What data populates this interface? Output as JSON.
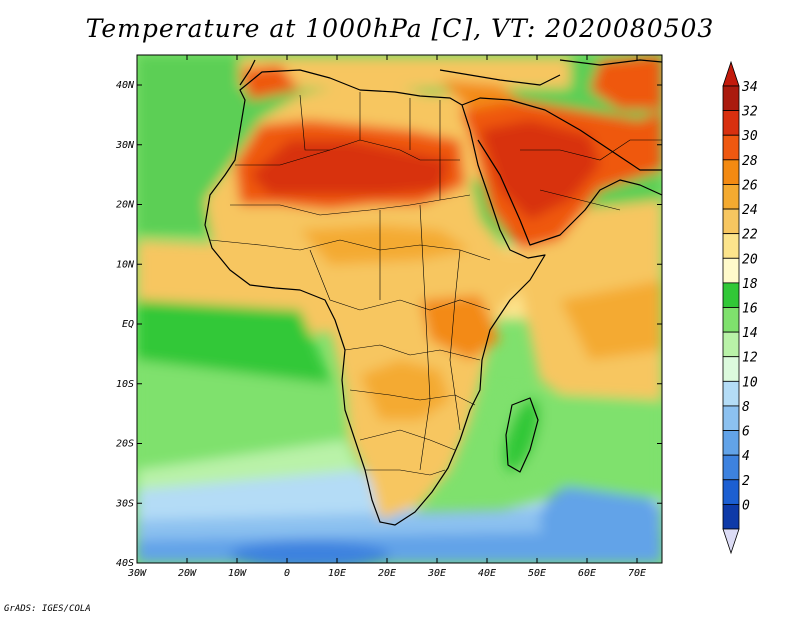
{
  "title": "Temperature at 1000hPa [C], VT: 2020080503",
  "credit": "GrADS: IGES/COLA",
  "map": {
    "lon_range": [
      -30,
      75
    ],
    "lat_range": [
      -40,
      45
    ],
    "lon_ticks": [
      "30W",
      "20W",
      "10W",
      "0",
      "10E",
      "20E",
      "30E",
      "40E",
      "50E",
      "60E",
      "70E"
    ],
    "lat_ticks": [
      "40N",
      "30N",
      "20N",
      "10N",
      "EQ",
      "10S",
      "20S",
      "30S",
      "40S"
    ]
  },
  "colorbar": {
    "levels": [
      "34",
      "32",
      "30",
      "28",
      "26",
      "24",
      "22",
      "20",
      "18",
      "16",
      "14",
      "12",
      "10",
      "8",
      "6",
      "4",
      "2",
      "0"
    ],
    "colors": [
      "#aa1a0e",
      "#d8300f",
      "#ef5810",
      "#f38a12",
      "#f4aa30",
      "#f7c660",
      "#fce48c",
      "#fffacb",
      "#31c837",
      "#7fe16d",
      "#b9f2a8",
      "#dcfadd",
      "#b4dcf6",
      "#8cc1f0",
      "#62a3e8",
      "#3d82df",
      "#1c5fd2",
      "#0e3aa8",
      "#101a6c"
    ],
    "over_color": "#c21a0c",
    "under_color": "#dcdcf5"
  }
}
